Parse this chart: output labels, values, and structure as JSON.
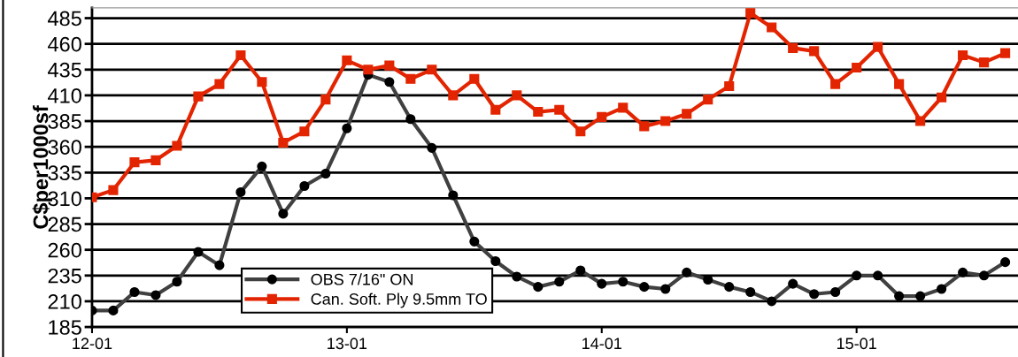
{
  "chart_data": {
    "type": "line",
    "ylabel": "C$per1000sf",
    "categories": [
      "12-01",
      null,
      null,
      null,
      null,
      null,
      null,
      null,
      null,
      null,
      null,
      null,
      "13-01",
      null,
      null,
      null,
      null,
      null,
      null,
      null,
      null,
      null,
      null,
      null,
      "14-01",
      null,
      null,
      null,
      null,
      null,
      null,
      null,
      null,
      null,
      null,
      null,
      "15-01",
      null,
      null,
      null,
      null,
      null,
      null,
      null
    ],
    "series": [
      {
        "name": "OBS 7/16\" ON",
        "color": "#404040",
        "marker": "circle",
        "values": [
          201,
          201,
          219,
          216,
          229,
          258,
          245,
          316,
          341,
          295,
          322,
          334,
          378,
          430,
          423,
          387,
          359,
          313,
          268,
          249,
          234,
          224,
          229,
          240,
          227,
          229,
          224,
          222,
          238,
          231,
          224,
          219,
          210,
          227,
          217,
          219,
          235,
          235,
          215,
          215,
          222,
          238,
          235,
          248
        ]
      },
      {
        "name": "Can. Soft. Ply 9.5mm TO",
        "color": "#e32400",
        "marker": "square",
        "values": [
          311,
          318,
          345,
          347,
          361,
          409,
          421,
          449,
          423,
          364,
          375,
          406,
          444,
          435,
          439,
          426,
          435,
          410,
          426,
          396,
          410,
          394,
          396,
          375,
          389,
          398,
          380,
          385,
          392,
          406,
          419,
          490,
          476,
          456,
          453,
          421,
          437,
          457,
          421,
          385,
          408,
          449,
          442,
          451
        ]
      }
    ],
    "ylim": [
      185,
      495
    ],
    "yticks": [
      185,
      210,
      235,
      260,
      285,
      310,
      335,
      360,
      385,
      410,
      435,
      460,
      485
    ],
    "grid": "y",
    "legend": "bottom left",
    "line_style": "solid"
  }
}
